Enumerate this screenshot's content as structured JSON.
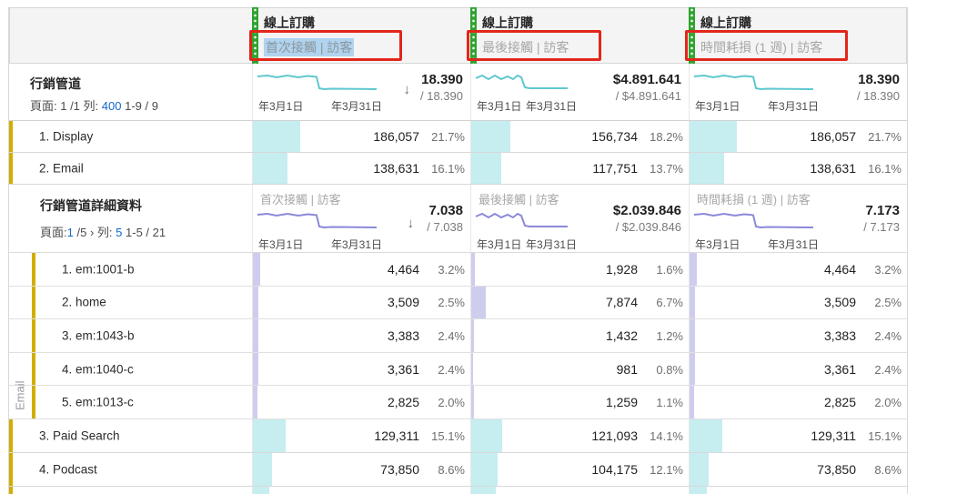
{
  "colors": {
    "accent_green": "#2fa32f",
    "teal_line": "#5fc8cf",
    "teal_bar": "#c6edf0",
    "purple_line": "#8b89d9",
    "purple_bar": "#cfcdee",
    "gold_row_strip": "#d2ae00",
    "annotation_red": "#e2261b",
    "link_blue": "#1269c9",
    "selection_highlight": "#b0d4ef"
  },
  "metric_header": {
    "columns": [
      {
        "metric": "線上訂購",
        "segment": "首次接觸 | 訪客",
        "highlighted": true
      },
      {
        "metric": "線上訂購",
        "segment": "最後接觸 | 訪客",
        "highlighted": false
      },
      {
        "metric": "線上訂購",
        "segment": "時間耗損 (1 週) | 訪客",
        "highlighted": false
      }
    ]
  },
  "outer_table": {
    "title": "行銷管道",
    "pagination": {
      "left": "頁面: 1 /1 列:",
      "rows_link": "400",
      "range": "1-9 / 9"
    },
    "summaries": [
      {
        "date_start": "年3月1日",
        "date_end": "年3月31日",
        "sort_icon": "↓",
        "total": "18.390",
        "of_total": "/ 18.390"
      },
      {
        "date_start": "年3月1日",
        "date_end": "年3月31日",
        "total": "$4.891.641",
        "of_total": "/ $4.891.641"
      },
      {
        "date_start": "年3月1日",
        "date_end": "年3月31日",
        "total": "18.390",
        "of_total": "/ 18.390"
      }
    ],
    "rows": [
      {
        "label": "1. Display",
        "cells": [
          {
            "value": "186,057",
            "pct": "21.7%",
            "bar": 21.7
          },
          {
            "value": "156,734",
            "pct": "18.2%",
            "bar": 18.2
          },
          {
            "value": "186,057",
            "pct": "21.7%",
            "bar": 21.7
          }
        ]
      },
      {
        "label": "2. Email",
        "cells": [
          {
            "value": "138,631",
            "pct": "16.1%",
            "bar": 16.1
          },
          {
            "value": "117,751",
            "pct": "13.7%",
            "bar": 13.7
          },
          {
            "value": "138,631",
            "pct": "16.1%",
            "bar": 16.1
          }
        ]
      },
      {
        "label": "3. Paid Search",
        "cells": [
          {
            "value": "129,311",
            "pct": "15.1%",
            "bar": 15.1
          },
          {
            "value": "121,093",
            "pct": "14.1%",
            "bar": 14.1
          },
          {
            "value": "129,311",
            "pct": "15.1%",
            "bar": 15.1
          }
        ]
      },
      {
        "label": "4. Podcast",
        "cells": [
          {
            "value": "73,850",
            "pct": "8.6%",
            "bar": 8.6
          },
          {
            "value": "104,175",
            "pct": "12.1%",
            "bar": 12.1
          },
          {
            "value": "73,850",
            "pct": "8.6%",
            "bar": 8.6
          }
        ]
      }
    ],
    "partial_row": {
      "bars": [
        7.5,
        11.5,
        8
      ]
    }
  },
  "nested_table": {
    "title": "行銷管道詳細資料",
    "group_label": "Email",
    "pagination": {
      "page_label": "頁面:",
      "page_link": "1",
      "page_of": "/5",
      "chevron": "›",
      "rows_label": "列:",
      "rows_link": "5",
      "range": "1-5 / 21"
    },
    "summaries": [
      {
        "segment": "首次接觸 | 訪客",
        "date_start": "年3月1日",
        "date_end": "年3月31日",
        "sort_icon": "↓",
        "total": "7.038",
        "of_total": "/ 7.038"
      },
      {
        "segment": "最後接觸 | 訪客",
        "date_start": "年3月1日",
        "date_end": "年3月31日",
        "total": "$2.039.846",
        "of_total": "/ $2.039.846"
      },
      {
        "segment": "時間耗損 (1 週) | 訪客",
        "date_start": "年3月1日",
        "date_end": "年3月31日",
        "total": "7.173",
        "of_total": "/ 7.173"
      }
    ],
    "rows": [
      {
        "label": "1. em:1001-b",
        "cells": [
          {
            "value": "4,464",
            "pct": "3.2%",
            "bar": 3.2
          },
          {
            "value": "1,928",
            "pct": "1.6%",
            "bar": 1.6
          },
          {
            "value": "4,464",
            "pct": "3.2%",
            "bar": 3.2
          }
        ]
      },
      {
        "label": "2. home",
        "cells": [
          {
            "value": "3,509",
            "pct": "2.5%",
            "bar": 2.5
          },
          {
            "value": "7,874",
            "pct": "6.7%",
            "bar": 6.7
          },
          {
            "value": "3,509",
            "pct": "2.5%",
            "bar": 2.5
          }
        ]
      },
      {
        "label": "3. em:1043-b",
        "cells": [
          {
            "value": "3,383",
            "pct": "2.4%",
            "bar": 2.4
          },
          {
            "value": "1,432",
            "pct": "1.2%",
            "bar": 1.2
          },
          {
            "value": "3,383",
            "pct": "2.4%",
            "bar": 2.4
          }
        ]
      },
      {
        "label": "4. em:1040-c",
        "cells": [
          {
            "value": "3,361",
            "pct": "2.4%",
            "bar": 2.4
          },
          {
            "value": "981",
            "pct": "0.8%",
            "bar": 0.8
          },
          {
            "value": "3,361",
            "pct": "2.4%",
            "bar": 2.4
          }
        ]
      },
      {
        "label": "5. em:1013-c",
        "cells": [
          {
            "value": "2,825",
            "pct": "2.0%",
            "bar": 2.0
          },
          {
            "value": "1,259",
            "pct": "1.1%",
            "bar": 1.1
          },
          {
            "value": "2,825",
            "pct": "2.0%",
            "bar": 2.0
          }
        ]
      }
    ]
  }
}
